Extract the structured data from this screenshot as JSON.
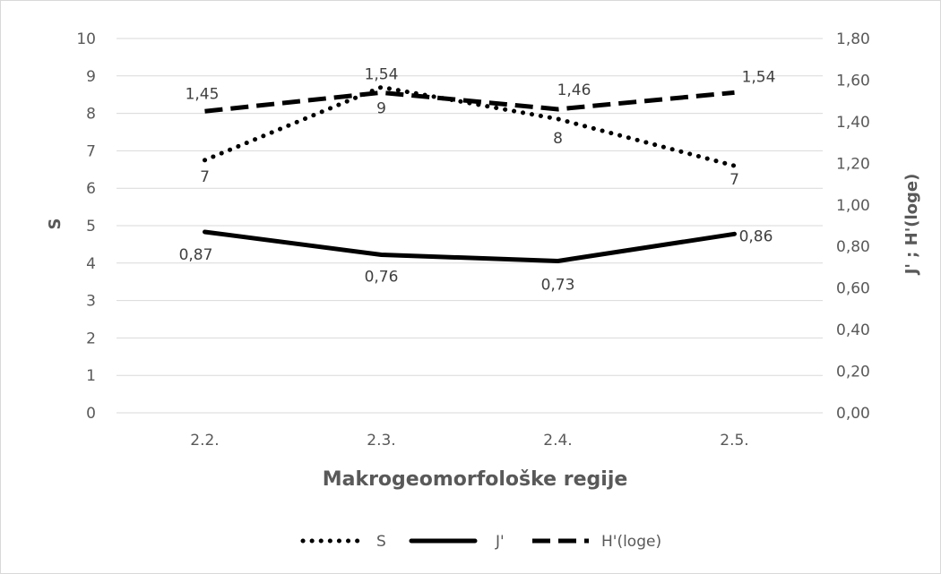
{
  "chart_data": {
    "type": "line",
    "title": "",
    "xlabel": "Makrogeomorfološke regije",
    "ylabel_left": "S",
    "ylabel_right": "J' ; H'(loge)",
    "categories": [
      "2.2.",
      "2.3.",
      "2.4.",
      "2.5."
    ],
    "ylim_left": [
      0,
      10
    ],
    "ylim_right": [
      0,
      1.8
    ],
    "left_ticks": [
      "0",
      "1",
      "2",
      "3",
      "4",
      "5",
      "6",
      "7",
      "8",
      "9",
      "10"
    ],
    "right_ticks": [
      "0,00",
      "0,20",
      "0,40",
      "0,60",
      "0,80",
      "1,00",
      "1,20",
      "1,40",
      "1,60",
      "1,80"
    ],
    "grid": true,
    "legend_position": "bottom",
    "series": [
      {
        "name": "S",
        "axis": "left",
        "style": "dotted",
        "values": [
          7,
          9,
          8,
          7
        ],
        "plot_values": [
          6.75,
          8.7,
          7.85,
          6.6
        ],
        "labels": [
          "7",
          "9",
          "8",
          "7"
        ]
      },
      {
        "name": "J'",
        "axis": "right",
        "style": "solid",
        "values": [
          0.87,
          0.76,
          0.73,
          0.86
        ],
        "labels": [
          "0,87",
          "0,76",
          "0,73",
          "0,86"
        ]
      },
      {
        "name": "H'(loge)",
        "axis": "right",
        "style": "dashed",
        "values": [
          1.45,
          1.54,
          1.46,
          1.54
        ],
        "labels": [
          "1,45",
          "1,54",
          "1,46",
          "1,54"
        ]
      }
    ],
    "colors": {
      "line": "#000000",
      "grid": "#d9d9d9",
      "text": "#595959"
    }
  }
}
